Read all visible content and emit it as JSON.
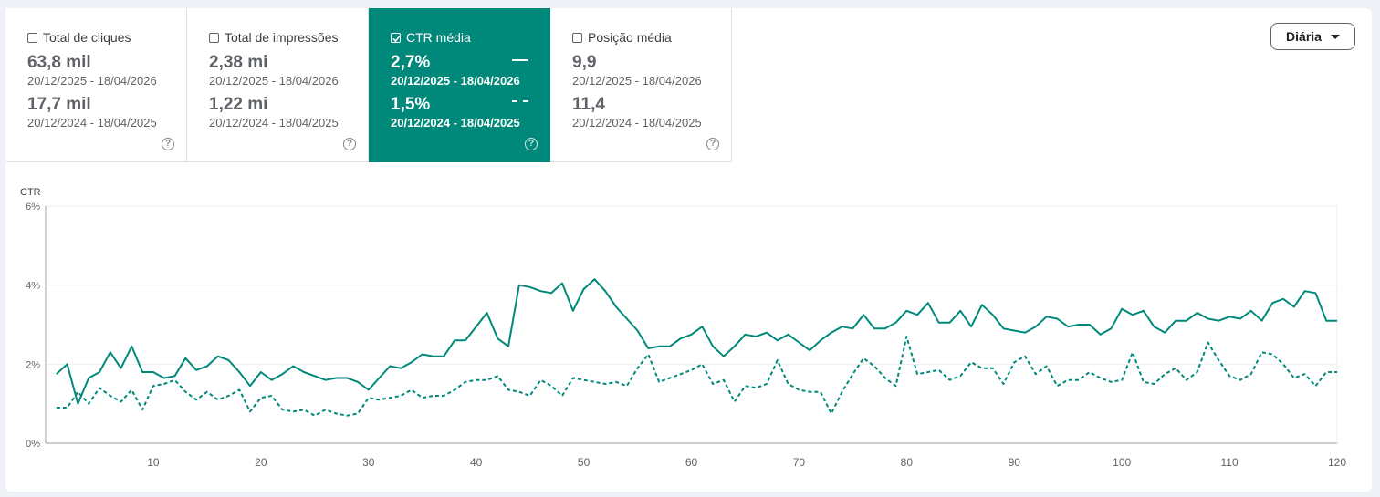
{
  "cards": [
    {
      "label": "Total de cliques",
      "value1": "63,8 mil",
      "date1": "20/12/2025 - 18/04/2026",
      "value2": "17,7 mil",
      "date2": "20/12/2024 - 18/04/2025",
      "checked": false,
      "active": false
    },
    {
      "label": "Total de impressões",
      "value1": "2,38 mi",
      "date1": "20/12/2025 - 18/04/2026",
      "value2": "1,22 mi",
      "date2": "20/12/2024 - 18/04/2025",
      "checked": false,
      "active": false
    },
    {
      "label": "CTR média",
      "value1": "2,7%",
      "date1": "20/12/2025 - 18/04/2026",
      "value2": "1,5%",
      "date2": "20/12/2024 - 18/04/2025",
      "checked": true,
      "active": true
    },
    {
      "label": "Posição média",
      "value1": "9,9",
      "date1": "20/12/2025 - 18/04/2026",
      "value2": "11,4",
      "date2": "20/12/2024 - 18/04/2025",
      "checked": false,
      "active": false
    }
  ],
  "help_glyph": "?",
  "dropdown": {
    "label": "Diária"
  },
  "colors": {
    "accent": "#00897b",
    "line": "#00897b",
    "grid": "#eeeeee"
  },
  "chart_data": {
    "type": "line",
    "ylabel": "CTR",
    "ylim": [
      0,
      6
    ],
    "yticks": [
      "0%",
      "2%",
      "4%",
      "6%"
    ],
    "xlim": [
      0,
      120
    ],
    "xticks": [
      10,
      20,
      30,
      40,
      50,
      60,
      70,
      80,
      90,
      100,
      110,
      120
    ],
    "series": [
      {
        "style": "solid",
        "values": [
          1.75,
          2.0,
          1.0,
          1.65,
          1.8,
          2.3,
          1.9,
          2.45,
          1.8,
          1.8,
          1.65,
          1.7,
          2.15,
          1.85,
          1.95,
          2.2,
          2.1,
          1.8,
          1.45,
          1.8,
          1.6,
          1.75,
          1.95,
          1.8,
          1.7,
          1.6,
          1.65,
          1.65,
          1.55,
          1.35,
          1.65,
          1.95,
          1.9,
          2.05,
          2.25,
          2.2,
          2.2,
          2.6,
          2.6,
          2.95,
          3.3,
          2.65,
          2.45,
          4.0,
          3.95,
          3.85,
          3.8,
          4.05,
          3.35,
          3.9,
          4.15,
          3.85,
          3.45,
          3.15,
          2.85,
          2.4,
          2.45,
          2.45,
          2.65,
          2.75,
          2.95,
          2.45,
          2.2,
          2.45,
          2.75,
          2.7,
          2.8,
          2.6,
          2.75,
          2.55,
          2.35,
          2.6,
          2.8,
          2.95,
          2.9,
          3.25,
          2.9,
          2.9,
          3.05,
          3.35,
          3.25,
          3.55,
          3.05,
          3.05,
          3.35,
          2.95,
          3.5,
          3.25,
          2.9,
          2.85,
          2.8,
          2.95,
          3.2,
          3.15,
          2.95,
          3.0,
          3.0,
          2.75,
          2.9,
          3.4,
          3.25,
          3.35,
          2.95,
          2.8,
          3.1,
          3.1,
          3.3,
          3.15,
          3.1,
          3.2,
          3.15,
          3.35,
          3.1,
          3.55,
          3.65,
          3.45,
          3.85,
          3.8,
          3.1,
          3.1
        ]
      },
      {
        "style": "dashed",
        "values": [
          0.9,
          0.9,
          1.3,
          1.0,
          1.4,
          1.2,
          1.05,
          1.35,
          0.85,
          1.45,
          1.5,
          1.6,
          1.3,
          1.1,
          1.3,
          1.1,
          1.2,
          1.35,
          0.8,
          1.15,
          1.2,
          0.85,
          0.8,
          0.85,
          0.7,
          0.85,
          0.75,
          0.7,
          0.75,
          1.15,
          1.1,
          1.15,
          1.2,
          1.35,
          1.15,
          1.2,
          1.2,
          1.35,
          1.55,
          1.6,
          1.6,
          1.7,
          1.35,
          1.3,
          1.2,
          1.6,
          1.45,
          1.2,
          1.65,
          1.6,
          1.55,
          1.5,
          1.55,
          1.45,
          1.9,
          2.25,
          1.55,
          1.65,
          1.75,
          1.85,
          2.0,
          1.5,
          1.6,
          1.05,
          1.45,
          1.4,
          1.5,
          2.1,
          1.5,
          1.35,
          1.3,
          1.3,
          0.75,
          1.3,
          1.75,
          2.15,
          1.95,
          1.65,
          1.45,
          2.7,
          1.75,
          1.8,
          1.85,
          1.6,
          1.7,
          2.05,
          1.9,
          1.9,
          1.5,
          2.05,
          2.2,
          1.75,
          1.95,
          1.45,
          1.6,
          1.6,
          1.8,
          1.65,
          1.55,
          1.6,
          2.3,
          1.55,
          1.5,
          1.75,
          1.9,
          1.6,
          1.8,
          2.55,
          2.1,
          1.7,
          1.6,
          1.75,
          2.3,
          2.25,
          2.0,
          1.65,
          1.75,
          1.45,
          1.8,
          1.8
        ]
      }
    ]
  }
}
